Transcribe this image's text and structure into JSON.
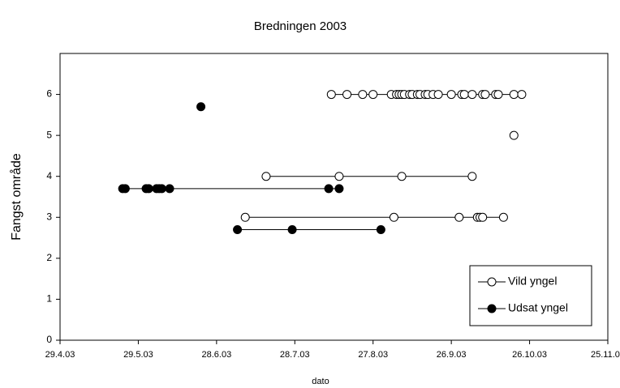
{
  "chart_data": {
    "type": "scatter",
    "title": "Bredningen 2003",
    "x_label": "dato",
    "y_label": "Fangst område",
    "xlim": [
      "2003-04-29",
      "2003-11-25"
    ],
    "xticks": [
      {
        "value": "2003-04-29",
        "label": "29.4.03"
      },
      {
        "value": "2003-05-29",
        "label": "29.5.03"
      },
      {
        "value": "2003-06-28",
        "label": "28.6.03"
      },
      {
        "value": "2003-07-28",
        "label": "28.7.03"
      },
      {
        "value": "2003-08-27",
        "label": "27.8.03"
      },
      {
        "value": "2003-09-26",
        "label": "26.9.03"
      },
      {
        "value": "2003-10-26",
        "label": "26.10.03"
      },
      {
        "value": "2003-11-25",
        "label": "25.11.03"
      }
    ],
    "ylim": [
      0,
      7
    ],
    "yticks": [
      0,
      1,
      2,
      3,
      4,
      5,
      6
    ],
    "legend": "lower right",
    "series": [
      {
        "name": "Vild yngel",
        "color": "#ffffff",
        "line": true,
        "x": [
          "2003-08-11",
          "2003-08-17",
          "2003-08-23",
          "2003-08-27",
          "2003-09-03",
          "2003-09-05",
          "2003-09-06",
          "2003-09-07",
          "2003-09-08",
          "2003-09-10",
          "2003-09-11",
          "2003-09-13",
          "2003-09-14",
          "2003-09-16",
          "2003-09-17",
          "2003-09-19",
          "2003-09-21",
          "2003-09-26",
          "2003-09-30",
          "2003-10-01",
          "2003-10-04",
          "2003-10-08",
          "2003-10-09",
          "2003-10-13",
          "2003-10-14",
          "2003-10-20",
          "2003-10-23",
          null,
          "2003-10-20",
          null,
          "2003-07-17",
          "2003-08-14",
          "2003-09-07",
          "2003-10-04",
          null,
          "2003-07-09",
          "2003-09-04",
          "2003-09-29",
          "2003-10-06",
          "2003-10-07",
          "2003-10-08",
          "2003-10-16"
        ],
        "values": [
          6,
          6,
          6,
          6,
          6,
          6,
          6,
          6,
          6,
          6,
          6,
          6,
          6,
          6,
          6,
          6,
          6,
          6,
          6,
          6,
          6,
          6,
          6,
          6,
          6,
          6,
          6,
          null,
          5,
          null,
          4,
          4,
          4,
          4,
          null,
          3,
          3,
          3,
          3,
          3,
          3,
          3
        ]
      },
      {
        "name": "Udsat yngel",
        "color": "#000000",
        "line": true,
        "x": [
          "2003-06-22",
          null,
          "2003-05-23",
          "2003-05-24",
          "2003-06-01",
          "2003-06-02",
          "2003-06-05",
          "2003-06-06",
          "2003-06-07",
          "2003-06-10",
          "2003-08-10",
          "2003-08-14",
          null,
          "2003-07-06",
          "2003-07-27",
          "2003-08-30"
        ],
        "values": [
          5.7,
          null,
          3.7,
          3.7,
          3.7,
          3.7,
          3.7,
          3.7,
          3.7,
          3.7,
          3.7,
          3.7,
          null,
          2.7,
          2.7,
          2.7
        ]
      }
    ]
  }
}
